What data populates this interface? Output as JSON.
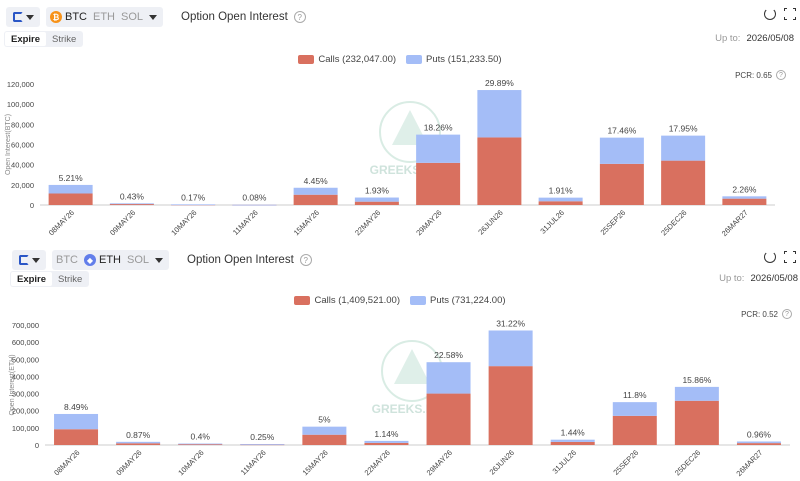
{
  "icons": {
    "exchange": "deribit-logo-icon",
    "dropdown": "chevron-down-icon",
    "help": "question-circle-icon",
    "refresh": "refresh-icon",
    "fullscreen": "fullscreen-icon"
  },
  "watermark": "GREEKS.LIVE",
  "panels": [
    {
      "coins": [
        {
          "label": "BTC",
          "active": true,
          "badge": "₿",
          "color": "#f7931a"
        },
        {
          "label": "ETH",
          "active": false
        },
        {
          "label": "SOL",
          "active": false
        }
      ],
      "title": "Option Open Interest",
      "help_glyph": "?",
      "tabs": [
        {
          "label": "Expire",
          "active": true
        },
        {
          "label": "Strike",
          "active": false
        }
      ],
      "upto_label": "Up to:",
      "upto_date": "2026/05/08",
      "pcr": "PCR: 0.65"
    },
    {
      "coins": [
        {
          "label": "BTC",
          "active": false
        },
        {
          "label": "ETH",
          "active": true,
          "badge": "◆",
          "color": "#627eea"
        },
        {
          "label": "SOL",
          "active": false
        }
      ],
      "title": "Option Open Interest",
      "help_glyph": "?",
      "tabs": [
        {
          "label": "Expire",
          "active": true
        },
        {
          "label": "Strike",
          "active": false
        }
      ],
      "upto_label": "Up to:",
      "upto_date": "2026/05/08",
      "pcr": "PCR: 0.52"
    }
  ],
  "chart_data": [
    {
      "type": "bar",
      "stacked": true,
      "categories": [
        "08MAY26",
        "09MAY26",
        "10MAY26",
        "11MAY26",
        "15MAY26",
        "22MAY26",
        "29MAY26",
        "26JUN26",
        "31JUL26",
        "25SEP26",
        "25DEC26",
        "26MAR27"
      ],
      "series": [
        {
          "name": "Calls (232,047.00)",
          "color": "#d9705f",
          "values": [
            11400,
            1050,
            500,
            200,
            10200,
            3300,
            41800,
            67000,
            3700,
            40800,
            44000,
            6300
          ]
        },
        {
          "name": "Puts (151,233.50)",
          "color": "#a4bdf7",
          "values": [
            8500,
            600,
            150,
            100,
            6900,
            4100,
            28000,
            47000,
            3600,
            26000,
            24800,
            2300
          ]
        }
      ],
      "bar_labels": [
        "5.21%",
        "0.43%",
        "0.17%",
        "0.08%",
        "4.45%",
        "1.93%",
        "18.26%",
        "29.89%",
        "1.91%",
        "17.46%",
        "17.95%",
        "2.26%"
      ],
      "yticks": [
        "0",
        "20,000",
        "40,000",
        "60,000",
        "80,000",
        "100,000",
        "120,000"
      ],
      "ylabel": "Open Interest(BTC)",
      "ylim": [
        0,
        120000
      ],
      "legend": "top-center",
      "grid": false
    },
    {
      "type": "bar",
      "stacked": true,
      "categories": [
        "08MAY26",
        "09MAY26",
        "10MAY26",
        "11MAY26",
        "15MAY26",
        "22MAY26",
        "29MAY26",
        "26JUN26",
        "31JUL26",
        "25SEP26",
        "25DEC26",
        "26MAR27"
      ],
      "series": [
        {
          "name": "Calls (1,409,521.00)",
          "color": "#d9705f",
          "values": [
            92000,
            10000,
            5500,
            4000,
            60000,
            12000,
            300000,
            460000,
            18000,
            170000,
            258000,
            11000
          ]
        },
        {
          "name": "Puts (731,224.00)",
          "color": "#a4bdf7",
          "values": [
            89000,
            8500,
            3000,
            1500,
            47000,
            12000,
            183000,
            208000,
            13000,
            80000,
            81000,
            9500
          ]
        }
      ],
      "bar_labels": [
        "8.49%",
        "0.87%",
        "0.4%",
        "0.25%",
        "5%",
        "1.14%",
        "22.58%",
        "31.22%",
        "1.44%",
        "11.8%",
        "15.86%",
        "0.96%"
      ],
      "yticks": [
        "0",
        "100,000",
        "200,000",
        "300,000",
        "400,000",
        "500,000",
        "600,000",
        "700,000"
      ],
      "ylabel": "Open Interest(ETH)",
      "ylim": [
        0,
        700000
      ],
      "legend": "top-center",
      "grid": false
    }
  ]
}
